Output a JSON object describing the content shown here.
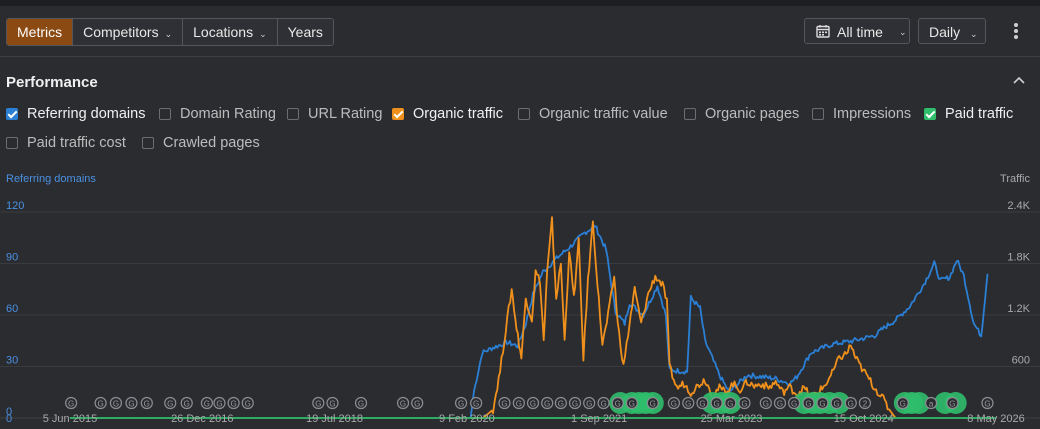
{
  "toolbar": {
    "tabs": [
      {
        "label": "Metrics",
        "active": true
      },
      {
        "label": "Competitors",
        "dropdown": true
      },
      {
        "label": "Locations",
        "dropdown": true
      },
      {
        "label": "Years"
      }
    ],
    "range_label": "All time",
    "interval_label": "Daily",
    "icons": {
      "calendar": "calendar-icon",
      "more": "more-vertical-icon",
      "collapse": "chevron-up-icon"
    }
  },
  "performance": {
    "title": "Performance",
    "metrics": [
      {
        "label": "Referring domains",
        "checked": true,
        "color": "#2b7fd4"
      },
      {
        "label": "Domain Rating",
        "checked": false
      },
      {
        "label": "URL Rating",
        "checked": false
      },
      {
        "label": "Organic traffic",
        "checked": true,
        "color": "#f0901c"
      },
      {
        "label": "Organic traffic value",
        "checked": false
      },
      {
        "label": "Organic pages",
        "checked": false
      },
      {
        "label": "Impressions",
        "checked": false
      },
      {
        "label": "Paid traffic",
        "checked": true,
        "color": "#2fbe6b"
      },
      {
        "label": "Paid traffic cost",
        "checked": false
      },
      {
        "label": "Crawled pages",
        "checked": false
      }
    ]
  },
  "chart_data": {
    "type": "line",
    "left_axis_title": "Referring domains",
    "right_axis_title": "Traffic",
    "left_ticks": [
      "0",
      "30",
      "60",
      "90",
      "120"
    ],
    "right_ticks": [
      "600",
      "1.2K",
      "1.8K",
      "2.4K"
    ],
    "ylim_left": [
      0,
      120
    ],
    "ylim_right": [
      0,
      2400
    ],
    "xlim": [
      "2015-01-01",
      "2026-05-25"
    ],
    "x_ticks": [
      {
        "label": "5 Jun 2015",
        "date": "2015-06-05"
      },
      {
        "label": "26 Dec 2016",
        "date": "2016-12-26"
      },
      {
        "label": "19 Jul 2018",
        "date": "2018-07-19"
      },
      {
        "label": "9 Feb 2020",
        "date": "2020-02-09"
      },
      {
        "label": "1 Sep 2021",
        "date": "2021-09-01"
      },
      {
        "label": "25 Mar 2023",
        "date": "2023-03-25"
      },
      {
        "label": "15 Oct 2024",
        "date": "2024-10-15"
      },
      {
        "label": "8 May 2026",
        "date": "2026-05-08"
      }
    ],
    "grid": true,
    "series": [
      {
        "name": "Referring domains",
        "axis": "left",
        "color": "#2b7fd4",
        "points": [
          [
            "2020-02-25",
            0
          ],
          [
            "2020-03-10",
            15
          ],
          [
            "2020-04-15",
            38
          ],
          [
            "2020-06-01",
            41
          ],
          [
            "2020-08-01",
            44
          ],
          [
            "2020-09-15",
            42
          ],
          [
            "2020-10-20",
            55
          ],
          [
            "2020-11-20",
            72
          ],
          [
            "2021-01-01",
            85
          ],
          [
            "2021-03-01",
            93
          ],
          [
            "2021-05-01",
            100
          ],
          [
            "2021-07-01",
            108
          ],
          [
            "2021-08-15",
            112
          ],
          [
            "2021-10-01",
            98
          ],
          [
            "2021-11-10",
            62
          ],
          [
            "2021-12-20",
            55
          ],
          [
            "2022-01-10",
            67
          ],
          [
            "2022-03-10",
            60
          ],
          [
            "2022-05-10",
            77
          ],
          [
            "2022-06-15",
            60
          ],
          [
            "2022-07-01",
            28
          ],
          [
            "2022-09-15",
            27
          ],
          [
            "2022-10-01",
            70
          ],
          [
            "2022-11-10",
            64
          ],
          [
            "2022-12-01",
            45
          ],
          [
            "2023-02-01",
            25
          ],
          [
            "2023-03-15",
            15
          ],
          [
            "2023-06-01",
            25
          ],
          [
            "2023-08-01",
            24
          ],
          [
            "2023-10-01",
            23
          ],
          [
            "2023-12-01",
            20
          ],
          [
            "2024-01-01",
            24
          ],
          [
            "2024-03-01",
            38
          ],
          [
            "2024-06-01",
            43
          ],
          [
            "2024-09-01",
            45
          ],
          [
            "2024-12-01",
            48
          ],
          [
            "2025-01-15",
            53
          ],
          [
            "2025-03-01",
            57
          ],
          [
            "2025-05-01",
            65
          ],
          [
            "2025-07-01",
            78
          ],
          [
            "2025-08-15",
            90
          ],
          [
            "2025-09-10",
            80
          ],
          [
            "2025-10-20",
            82
          ],
          [
            "2025-11-20",
            92
          ],
          [
            "2025-12-20",
            83
          ],
          [
            "2026-02-01",
            55
          ],
          [
            "2026-03-05",
            48
          ],
          [
            "2026-04-01",
            84
          ]
        ]
      },
      {
        "name": "Organic traffic",
        "axis": "right",
        "color": "#f0901c",
        "points": [
          [
            "2020-02-25",
            0
          ],
          [
            "2020-04-20",
            0
          ],
          [
            "2020-06-01",
            100
          ],
          [
            "2020-07-01",
            550
          ],
          [
            "2020-08-01",
            1150
          ],
          [
            "2020-08-20",
            1500
          ],
          [
            "2020-09-10",
            1050
          ],
          [
            "2020-10-01",
            700
          ],
          [
            "2020-10-20",
            1400
          ],
          [
            "2020-11-15",
            1150
          ],
          [
            "2020-12-01",
            1700
          ],
          [
            "2020-12-20",
            1600
          ],
          [
            "2021-01-05",
            900
          ],
          [
            "2021-01-20",
            1700
          ],
          [
            "2021-02-10",
            2300
          ],
          [
            "2021-02-28",
            1400
          ],
          [
            "2021-03-20",
            1800
          ],
          [
            "2021-04-05",
            900
          ],
          [
            "2021-04-25",
            1950
          ],
          [
            "2021-05-15",
            1400
          ],
          [
            "2021-06-05",
            2050
          ],
          [
            "2021-06-25",
            700
          ],
          [
            "2021-07-15",
            1600
          ],
          [
            "2021-08-05",
            2300
          ],
          [
            "2021-08-25",
            1550
          ],
          [
            "2021-09-15",
            850
          ],
          [
            "2021-10-10",
            1200
          ],
          [
            "2021-11-05",
            1650
          ],
          [
            "2021-11-20",
            1100
          ],
          [
            "2021-12-15",
            600
          ],
          [
            "2022-01-10",
            1100
          ],
          [
            "2022-02-01",
            1500
          ],
          [
            "2022-03-01",
            1100
          ],
          [
            "2022-04-01",
            1450
          ],
          [
            "2022-05-01",
            1650
          ],
          [
            "2022-06-01",
            1550
          ],
          [
            "2022-06-20",
            1350
          ],
          [
            "2022-07-01",
            600
          ],
          [
            "2022-08-01",
            350
          ],
          [
            "2022-09-01",
            400
          ],
          [
            "2022-10-01",
            300
          ],
          [
            "2022-11-01",
            380
          ],
          [
            "2022-12-01",
            450
          ],
          [
            "2023-01-01",
            270
          ],
          [
            "2023-02-01",
            350
          ],
          [
            "2023-03-01",
            300
          ],
          [
            "2023-04-01",
            400
          ],
          [
            "2023-05-01",
            330
          ],
          [
            "2023-06-01",
            420
          ],
          [
            "2023-07-01",
            370
          ],
          [
            "2023-08-01",
            400
          ],
          [
            "2023-09-01",
            350
          ],
          [
            "2023-10-01",
            420
          ],
          [
            "2023-11-01",
            300
          ],
          [
            "2023-12-01",
            360
          ],
          [
            "2024-01-01",
            280
          ],
          [
            "2024-02-01",
            350
          ],
          [
            "2024-03-01",
            250
          ],
          [
            "2024-04-01",
            300
          ],
          [
            "2024-05-01",
            380
          ],
          [
            "2024-06-01",
            520
          ],
          [
            "2024-07-01",
            700
          ],
          [
            "2024-08-01",
            750
          ],
          [
            "2024-08-20",
            850
          ],
          [
            "2024-09-10",
            700
          ],
          [
            "2024-10-01",
            600
          ],
          [
            "2024-11-01",
            480
          ],
          [
            "2024-12-01",
            350
          ],
          [
            "2025-01-01",
            250
          ],
          [
            "2025-02-01",
            100
          ],
          [
            "2025-03-01",
            0
          ]
        ]
      },
      {
        "name": "Paid traffic",
        "axis": "right",
        "color": "#2fbe6b",
        "points": [
          [
            "2015-06-05",
            0
          ],
          [
            "2026-05-08",
            0
          ]
        ]
      }
    ],
    "annotations": {
      "small_markers": [
        {
          "date": "2015-06-10",
          "label": "G"
        },
        {
          "date": "2015-10-15",
          "label": "G"
        },
        {
          "date": "2015-12-20",
          "label": "G"
        },
        {
          "date": "2016-02-25",
          "label": "G"
        },
        {
          "date": "2016-05-01",
          "label": "G"
        },
        {
          "date": "2016-08-10",
          "label": "G"
        },
        {
          "date": "2016-10-20",
          "label": "G"
        },
        {
          "date": "2017-01-15",
          "label": "G"
        },
        {
          "date": "2017-03-10",
          "label": "G"
        },
        {
          "date": "2017-05-10",
          "label": "G"
        },
        {
          "date": "2017-07-10",
          "label": "G"
        },
        {
          "date": "2018-05-10",
          "label": "G"
        },
        {
          "date": "2018-07-10",
          "label": "G"
        },
        {
          "date": "2018-11-10",
          "label": "G"
        },
        {
          "date": "2019-05-10",
          "label": "G"
        },
        {
          "date": "2019-07-10",
          "label": "G"
        },
        {
          "date": "2020-01-15",
          "label": "G"
        },
        {
          "date": "2020-03-20",
          "label": "G"
        },
        {
          "date": "2020-07-20",
          "label": "G"
        },
        {
          "date": "2020-09-20",
          "label": "G"
        },
        {
          "date": "2020-11-20",
          "label": "G"
        },
        {
          "date": "2021-01-20",
          "label": "G"
        },
        {
          "date": "2021-03-20",
          "label": "G"
        },
        {
          "date": "2021-05-20",
          "label": "G"
        },
        {
          "date": "2021-07-20",
          "label": "G"
        },
        {
          "date": "2021-09-20",
          "label": "G"
        },
        {
          "date": "2021-11-20",
          "label": "G"
        },
        {
          "date": "2022-01-20",
          "label": "G"
        },
        {
          "date": "2022-04-20",
          "label": "G"
        },
        {
          "date": "2022-07-20",
          "label": "G"
        },
        {
          "date": "2022-09-20",
          "label": "G"
        },
        {
          "date": "2022-11-20",
          "label": "G"
        },
        {
          "date": "2023-01-20",
          "label": "G"
        },
        {
          "date": "2023-03-20",
          "label": "G"
        },
        {
          "date": "2023-05-20",
          "label": "G"
        },
        {
          "date": "2023-08-20",
          "label": "G"
        },
        {
          "date": "2023-10-20",
          "label": "G"
        },
        {
          "date": "2023-12-20",
          "label": "G"
        },
        {
          "date": "2024-02-20",
          "label": "G"
        },
        {
          "date": "2024-04-20",
          "label": "G"
        },
        {
          "date": "2024-06-20",
          "label": "G"
        },
        {
          "date": "2024-08-20",
          "label": "G"
        },
        {
          "date": "2024-10-20",
          "label": "2"
        },
        {
          "date": "2025-04-01",
          "label": "G"
        },
        {
          "date": "2025-08-01",
          "label": "a"
        },
        {
          "date": "2025-11-01",
          "label": "G"
        },
        {
          "date": "2026-04-01",
          "label": "G"
        }
      ],
      "large_markers": [
        "2021-12-01",
        "2022-01-20",
        "2022-02-20",
        "2022-03-20",
        "2022-04-20",
        "2023-01-01",
        "2023-02-10",
        "2023-03-20",
        "2024-02-01",
        "2024-03-10",
        "2024-04-10",
        "2024-05-20",
        "2024-07-01",
        "2025-04-10",
        "2025-05-10",
        "2025-06-10",
        "2025-10-01",
        "2025-11-15"
      ]
    }
  }
}
